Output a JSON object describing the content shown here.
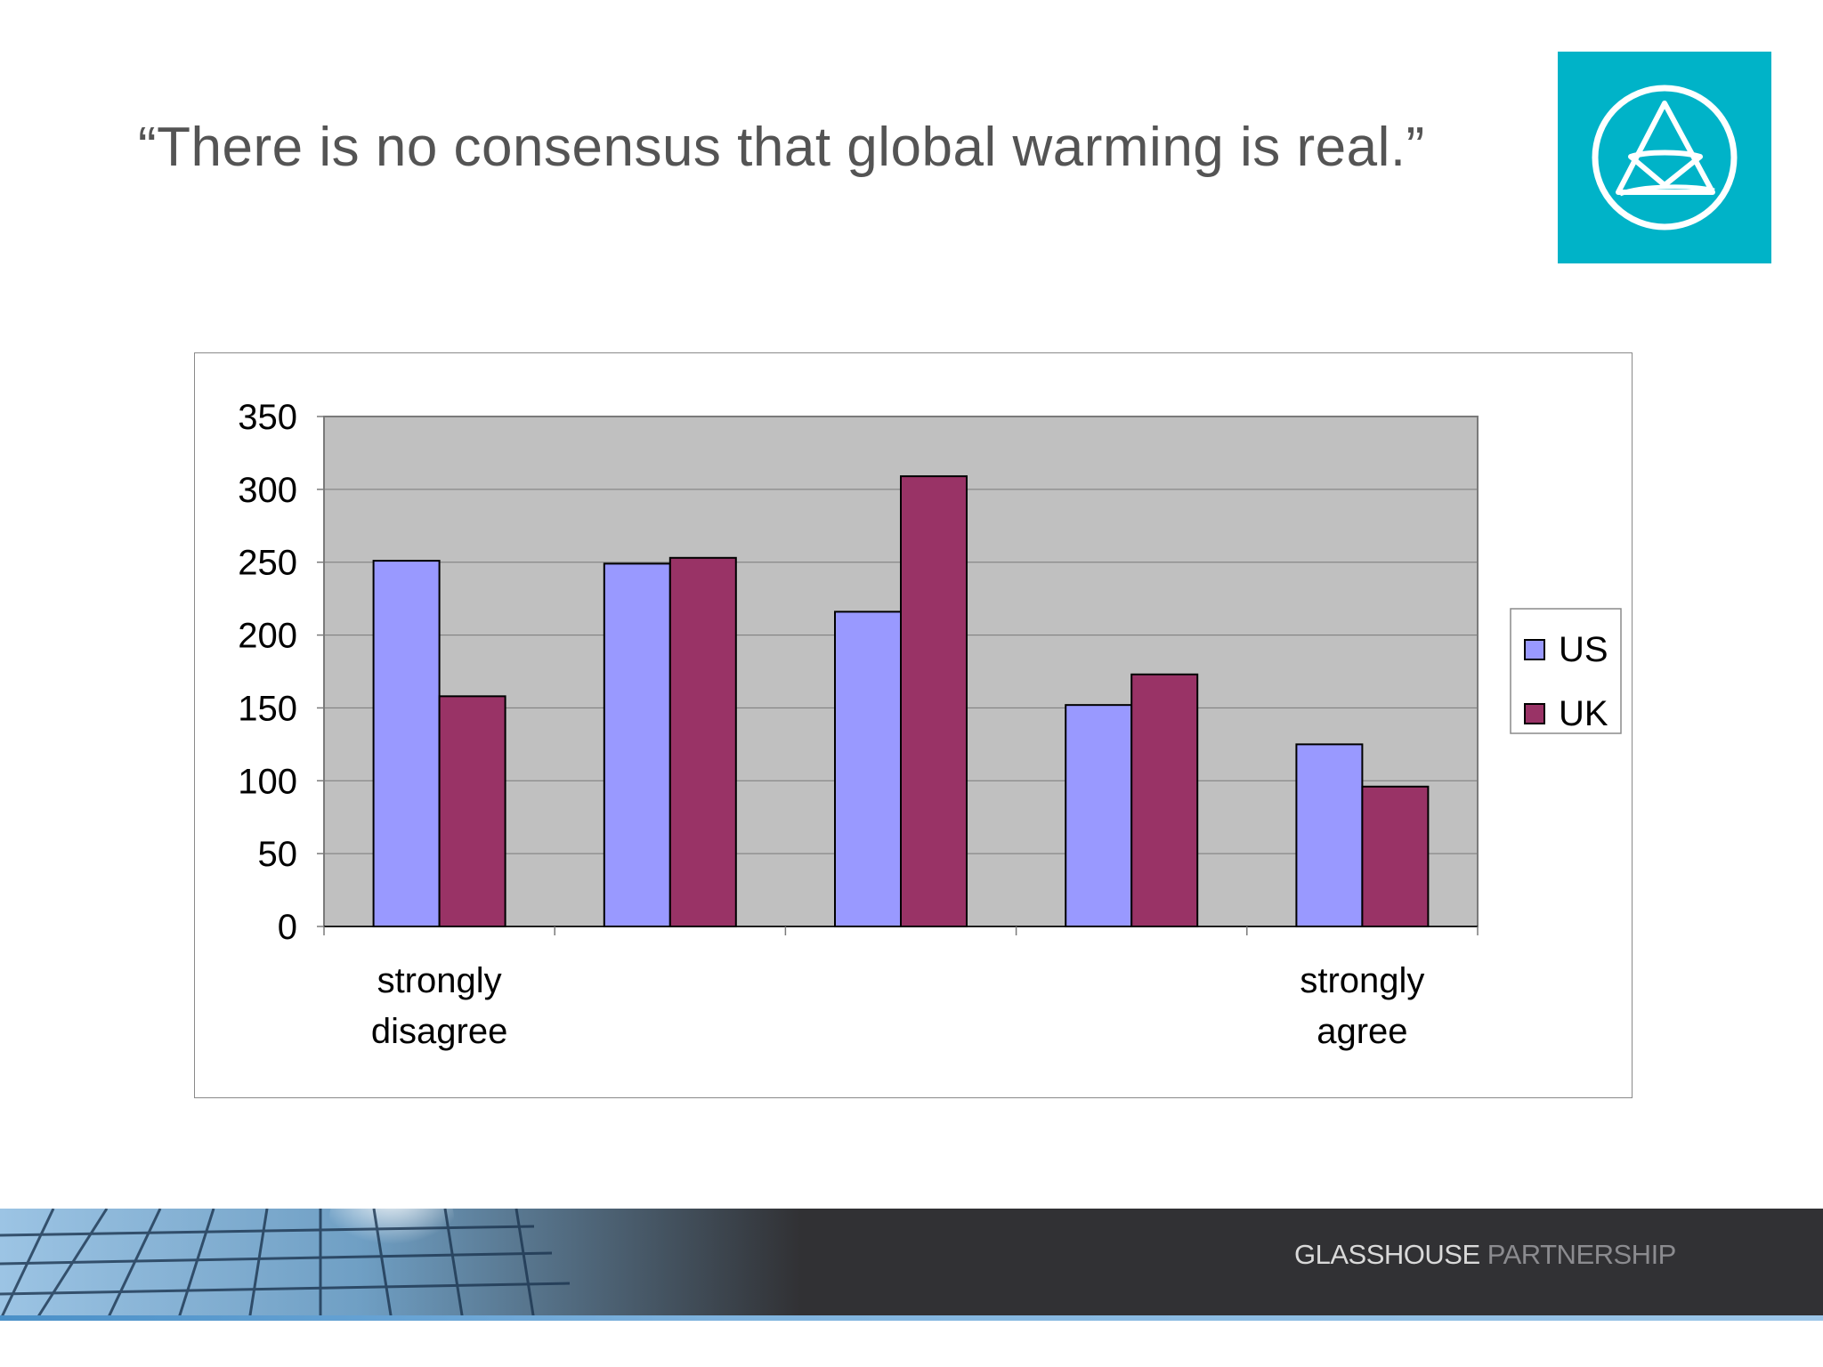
{
  "slide": {
    "title": "“There is no consensus that global warming is real.”"
  },
  "brand": {
    "name_primary": "GLASSHOUSE",
    "name_secondary": " PARTNERSHIP"
  },
  "colors": {
    "logo_bg": "#00b3c8",
    "plot_bg": "#c0c0c0",
    "us": "#9999ff",
    "uk": "#993366",
    "footer": "#313134"
  },
  "chart_data": {
    "type": "bar",
    "title": "",
    "xlabel": "",
    "ylabel": "",
    "ylim": [
      0,
      350
    ],
    "yticks": [
      "0",
      "50",
      "100",
      "150",
      "200",
      "250",
      "300",
      "350"
    ],
    "categories": [
      "strongly disagree",
      "",
      "",
      "",
      "strongly agree"
    ],
    "series": [
      {
        "name": "US",
        "color": "#9999ff",
        "values": [
          251,
          249,
          216,
          152,
          125
        ]
      },
      {
        "name": "UK",
        "color": "#993366",
        "values": [
          158,
          253,
          309,
          173,
          96
        ]
      }
    ],
    "grid": true,
    "legend_position": "right"
  }
}
